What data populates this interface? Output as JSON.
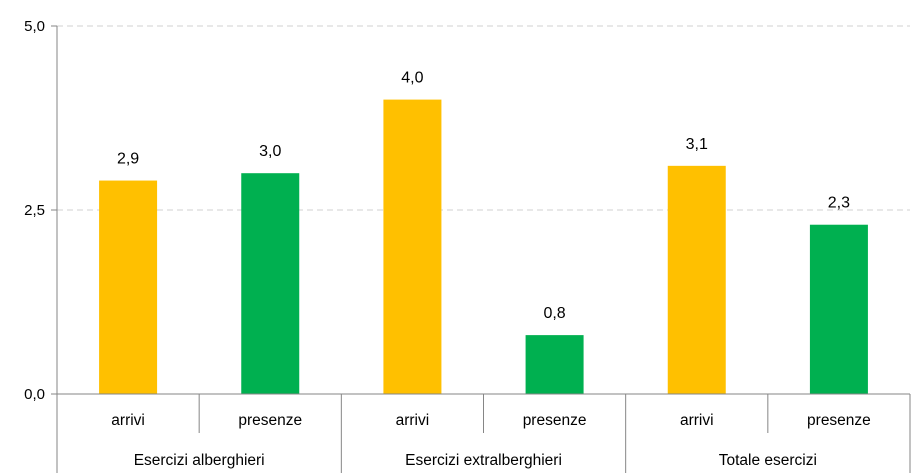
{
  "chart_data": {
    "type": "bar",
    "groups": [
      "Esercizi alberghieri",
      "Esercizi extralberghieri",
      "Totale esercizi"
    ],
    "categories": [
      "arrivi",
      "presenze",
      "arrivi",
      "presenze",
      "arrivi",
      "presenze"
    ],
    "values": [
      2.9,
      3.0,
      4.0,
      0.8,
      3.1,
      2.3
    ],
    "value_labels": [
      "2,9",
      "3,0",
      "4,0",
      "0,8",
      "3,1",
      "2,3"
    ],
    "bar_colors": [
      "#FFC000",
      "#00B050",
      "#FFC000",
      "#00B050",
      "#FFC000",
      "#00B050"
    ],
    "colors": {
      "arrivi": "#FFC000",
      "presenze": "#00B050"
    },
    "ylim": [
      0,
      5
    ],
    "yticks": [
      0,
      2.5,
      5
    ],
    "ytick_labels": [
      "0,0",
      "2,5",
      "5,0"
    ],
    "grid": true,
    "legend": "none",
    "title": "",
    "xlabel": "",
    "ylabel": ""
  }
}
